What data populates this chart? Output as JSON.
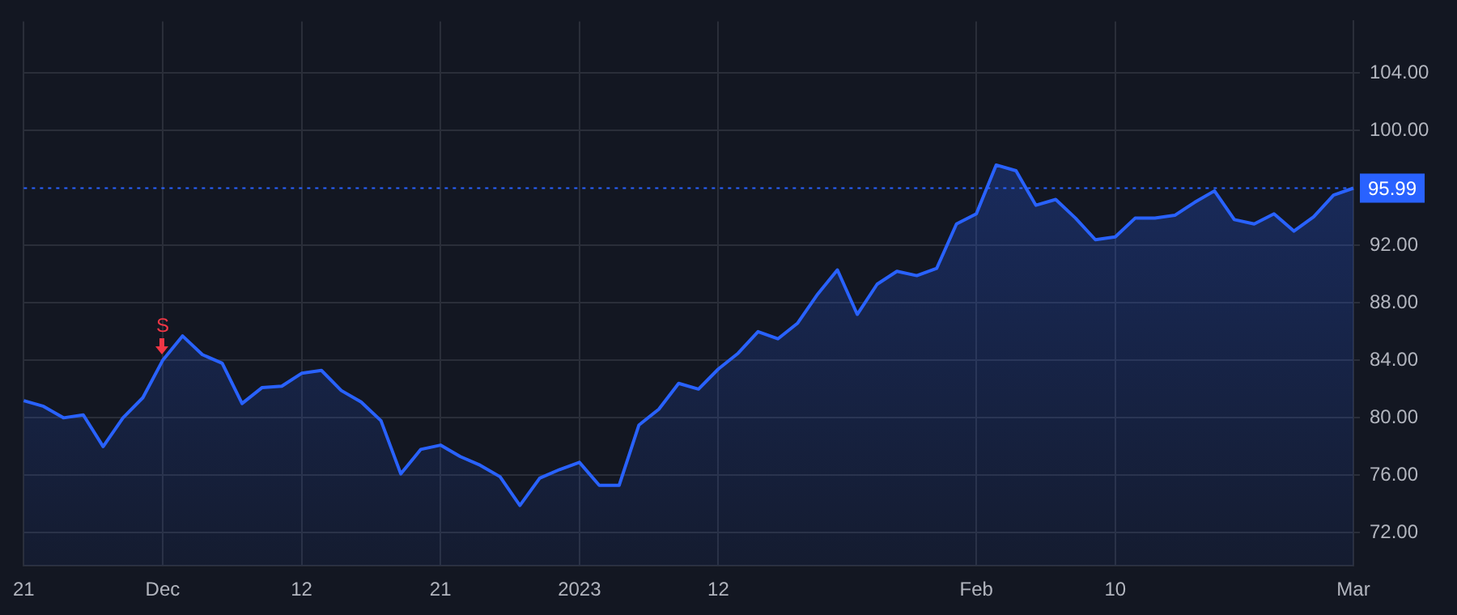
{
  "chart_data": {
    "type": "area",
    "categories": [
      "21",
      null,
      null,
      null,
      null,
      null,
      null,
      "Dec",
      null,
      null,
      null,
      null,
      null,
      null,
      "12",
      null,
      null,
      null,
      null,
      null,
      null,
      "21",
      null,
      null,
      null,
      null,
      null,
      null,
      "2023",
      null,
      null,
      null,
      null,
      null,
      null,
      "12",
      null,
      null,
      null,
      null,
      null,
      null,
      null,
      null,
      null,
      null,
      null,
      null,
      "Feb",
      null,
      null,
      null,
      null,
      null,
      null,
      "10",
      null,
      null,
      null,
      null,
      null,
      null,
      null,
      null,
      null,
      null,
      null,
      "Mar"
    ],
    "series": [
      {
        "color": "#2962ff",
        "values": [
          81.2,
          80.8,
          80.0,
          80.2,
          78.0,
          80.0,
          81.4,
          84.0,
          85.7,
          84.4,
          83.8,
          81.0,
          82.1,
          82.2,
          83.1,
          83.3,
          81.9,
          81.1,
          79.8,
          76.1,
          77.8,
          78.1,
          77.3,
          76.7,
          75.9,
          73.9,
          75.8,
          76.4,
          76.9,
          75.3,
          75.3,
          79.5,
          80.6,
          82.4,
          82.0,
          83.4,
          84.5,
          86.0,
          85.5,
          86.6,
          88.6,
          90.3,
          87.2,
          89.3,
          90.2,
          89.9,
          90.4,
          93.5,
          94.2,
          97.6,
          97.2,
          94.8,
          95.2,
          93.9,
          92.4,
          92.6,
          93.9,
          93.9,
          94.1,
          95.0,
          95.8,
          93.8,
          93.5,
          94.2,
          93.0,
          94.0,
          95.5,
          95.99
        ]
      }
    ],
    "ylim": [
      69.7,
      107.6
    ],
    "yticks": [
      {
        "value": 72,
        "label": "72.00"
      },
      {
        "value": 76,
        "label": "76.00"
      },
      {
        "value": 80,
        "label": "80.00"
      },
      {
        "value": 84,
        "label": "84.00"
      },
      {
        "value": 88,
        "label": "88.00"
      },
      {
        "value": 92,
        "label": "92.00"
      },
      {
        "value": 100,
        "label": "100.00"
      },
      {
        "value": 104,
        "label": "104.00"
      }
    ],
    "grid": true,
    "legend": false,
    "marker": "none",
    "line_style": "solid",
    "ref_lines": [
      {
        "axis": "y",
        "value": 95.99,
        "label": "95.99",
        "color": "#2962ff",
        "line_style": "dotted"
      }
    ],
    "annotations": [
      {
        "text": "S",
        "x": "Dec",
        "y": 84.0
      }
    ]
  }
}
